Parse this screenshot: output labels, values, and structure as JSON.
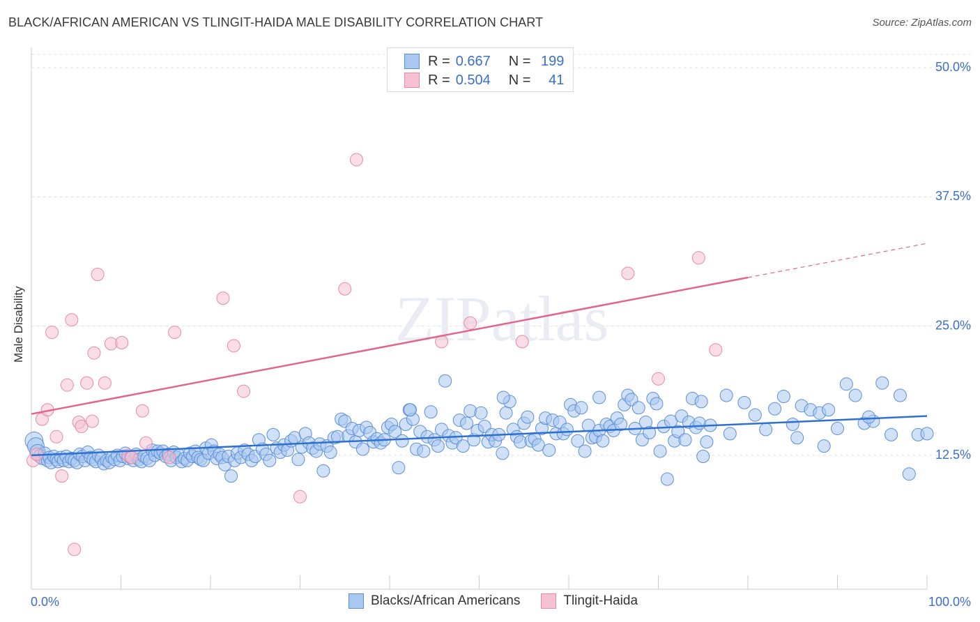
{
  "header": {
    "title": "BLACK/AFRICAN AMERICAN VS TLINGIT-HAIDA MALE DISABILITY CORRELATION CHART",
    "source": "Source: ZipAtlas.com"
  },
  "legend_top": {
    "row1": {
      "r_label": "R =",
      "r_value": "0.667",
      "n_label": "N =",
      "n_value": "199"
    },
    "row2": {
      "r_label": "R =",
      "r_value": "0.504",
      "n_label": "N =",
      "n_value": "41"
    }
  },
  "legend_bottom": {
    "blue": "Blacks/African Americans",
    "pink": "Tlingit-Haida"
  },
  "colors": {
    "blue_fill": "#a9c8f0",
    "blue_stroke": "#5b8fd6",
    "blue_line": "#2f6fd0",
    "pink_fill": "#f6c1d2",
    "pink_stroke": "#e58aa8",
    "pink_line": "#e0668f",
    "tick_text": "#3a6fc9"
  },
  "watermark": "ZIPatlas",
  "chart_data": {
    "type": "scatter",
    "title": "BLACK/AFRICAN AMERICAN VS TLINGIT-HAIDA MALE DISABILITY CORRELATION CHART",
    "xlabel": "",
    "ylabel": "Male Disability",
    "xlim": [
      0,
      100
    ],
    "ylim": [
      0,
      52
    ],
    "x_tick_labels": [
      "0.0%",
      "100.0%"
    ],
    "y_ticks": [
      12.5,
      25.0,
      37.5,
      50.0
    ],
    "y_tick_labels": [
      "12.5%",
      "25.0%",
      "37.5%",
      "50.0%"
    ],
    "grid": true,
    "series": [
      {
        "name": "Blacks/African Americans",
        "r": 0.667,
        "n": 199,
        "trend": {
          "x": [
            0,
            100
          ],
          "y": [
            12.5,
            16.3
          ],
          "dashed_from": null
        },
        "points": [
          [
            0.3,
            13.9
          ],
          [
            0.5,
            13.4
          ],
          [
            0.7,
            12.8
          ],
          [
            1.0,
            12.4
          ],
          [
            1.2,
            12.2
          ],
          [
            1.5,
            12.7
          ],
          [
            1.8,
            12.0
          ],
          [
            2.0,
            12.3
          ],
          [
            2.2,
            11.8
          ],
          [
            2.5,
            12.4
          ],
          [
            2.8,
            12.1
          ],
          [
            3.0,
            11.9
          ],
          [
            3.3,
            12.3
          ],
          [
            3.6,
            12.0
          ],
          [
            3.9,
            12.4
          ],
          [
            4.2,
            11.9
          ],
          [
            4.5,
            12.2
          ],
          [
            4.8,
            12.0
          ],
          [
            5.1,
            11.8
          ],
          [
            5.4,
            12.6
          ],
          [
            5.7,
            12.4
          ],
          [
            6.0,
            12.0
          ],
          [
            6.3,
            12.8
          ],
          [
            6.6,
            12.3
          ],
          [
            6.9,
            12.1
          ],
          [
            7.2,
            11.9
          ],
          [
            7.5,
            12.5
          ],
          [
            7.8,
            12.2
          ],
          [
            8.1,
            11.7
          ],
          [
            8.4,
            12.0
          ],
          [
            8.7,
            11.8
          ],
          [
            9.0,
            12.3
          ],
          [
            9.3,
            12.1
          ],
          [
            9.6,
            12.5
          ],
          [
            9.9,
            12.0
          ],
          [
            10.2,
            12.4
          ],
          [
            10.5,
            12.7
          ],
          [
            10.8,
            12.2
          ],
          [
            11.1,
            12.3
          ],
          [
            11.4,
            12.0
          ],
          [
            11.7,
            12.6
          ],
          [
            12.0,
            12.1
          ],
          [
            12.3,
            11.9
          ],
          [
            12.6,
            12.4
          ],
          [
            12.9,
            12.2
          ],
          [
            13.2,
            12.0
          ],
          [
            13.5,
            13.0
          ],
          [
            13.8,
            12.5
          ],
          [
            14.1,
            12.9
          ],
          [
            14.4,
            12.7
          ],
          [
            14.7,
            12.9
          ],
          [
            15.0,
            12.4
          ],
          [
            15.3,
            12.6
          ],
          [
            15.6,
            12.0
          ],
          [
            15.9,
            12.8
          ],
          [
            16.2,
            12.3
          ],
          [
            16.5,
            12.5
          ],
          [
            16.8,
            11.9
          ],
          [
            17.1,
            12.2
          ],
          [
            17.4,
            12.0
          ],
          [
            17.7,
            12.7
          ],
          [
            18.0,
            12.4
          ],
          [
            18.3,
            12.9
          ],
          [
            18.6,
            12.3
          ],
          [
            18.9,
            12.1
          ],
          [
            19.2,
            12.0
          ],
          [
            19.5,
            13.2
          ],
          [
            19.8,
            12.7
          ],
          [
            20.1,
            13.5
          ],
          [
            20.4,
            12.9
          ],
          [
            20.7,
            12.2
          ],
          [
            21.0,
            12.6
          ],
          [
            21.3,
            12.3
          ],
          [
            21.6,
            11.6
          ],
          [
            22.0,
            12.4
          ],
          [
            22.3,
            10.5
          ],
          [
            22.7,
            12.0
          ],
          [
            23.0,
            12.7
          ],
          [
            23.4,
            12.3
          ],
          [
            23.8,
            13.0
          ],
          [
            24.2,
            12.6
          ],
          [
            24.6,
            12.0
          ],
          [
            25.0,
            12.4
          ],
          [
            25.4,
            14.0
          ],
          [
            25.8,
            13.1
          ],
          [
            26.2,
            12.6
          ],
          [
            26.6,
            12.0
          ],
          [
            27.0,
            14.5
          ],
          [
            27.4,
            13.2
          ],
          [
            27.8,
            12.8
          ],
          [
            28.2,
            13.5
          ],
          [
            28.6,
            13.0
          ],
          [
            29.0,
            13.9
          ],
          [
            29.4,
            14.2
          ],
          [
            29.8,
            12.1
          ],
          [
            30.2,
            13.3
          ],
          [
            30.6,
            14.6
          ],
          [
            31.0,
            13.7
          ],
          [
            31.4,
            13.2
          ],
          [
            31.8,
            12.9
          ],
          [
            32.2,
            13.6
          ],
          [
            32.6,
            11.0
          ],
          [
            33.0,
            13.4
          ],
          [
            33.4,
            12.8
          ],
          [
            33.8,
            14.2
          ],
          [
            34.2,
            14.3
          ],
          [
            34.6,
            16.0
          ],
          [
            35.0,
            15.8
          ],
          [
            35.4,
            14.4
          ],
          [
            35.8,
            15.1
          ],
          [
            36.2,
            13.8
          ],
          [
            36.6,
            14.9
          ],
          [
            37.0,
            13.1
          ],
          [
            37.4,
            15.2
          ],
          [
            37.8,
            14.7
          ],
          [
            38.2,
            13.8
          ],
          [
            38.6,
            14.1
          ],
          [
            39.0,
            13.7
          ],
          [
            39.4,
            14.0
          ],
          [
            39.8,
            15.2
          ],
          [
            40.2,
            15.5
          ],
          [
            40.6,
            14.8
          ],
          [
            41.0,
            11.3
          ],
          [
            41.4,
            13.9
          ],
          [
            41.8,
            15.5
          ],
          [
            42.2,
            16.9
          ],
          [
            42.6,
            16.0
          ],
          [
            43.0,
            13.1
          ],
          [
            43.4,
            14.8
          ],
          [
            43.8,
            12.9
          ],
          [
            44.2,
            14.3
          ],
          [
            44.6,
            16.7
          ],
          [
            45.0,
            14.0
          ],
          [
            45.4,
            13.4
          ],
          [
            45.8,
            15.0
          ],
          [
            46.2,
            19.7
          ],
          [
            46.6,
            14.4
          ],
          [
            47.0,
            13.7
          ],
          [
            47.4,
            14.2
          ],
          [
            47.8,
            15.9
          ],
          [
            48.2,
            13.4
          ],
          [
            48.6,
            15.6
          ],
          [
            49.0,
            16.8
          ],
          [
            49.4,
            14.0
          ],
          [
            49.8,
            14.9
          ],
          [
            50.2,
            16.6
          ],
          [
            50.6,
            15.3
          ],
          [
            51.0,
            13.8
          ],
          [
            51.4,
            14.5
          ],
          [
            51.8,
            13.9
          ],
          [
            52.2,
            14.5
          ],
          [
            52.6,
            12.7
          ],
          [
            53.0,
            16.6
          ],
          [
            53.4,
            17.7
          ],
          [
            53.8,
            15.0
          ],
          [
            54.2,
            14.3
          ],
          [
            54.6,
            13.8
          ],
          [
            55.0,
            15.6
          ],
          [
            55.4,
            16.2
          ],
          [
            55.8,
            13.9
          ],
          [
            56.2,
            14.1
          ],
          [
            56.6,
            13.5
          ],
          [
            57.0,
            15.1
          ],
          [
            57.4,
            16.1
          ],
          [
            57.8,
            13.0
          ],
          [
            58.2,
            15.9
          ],
          [
            58.6,
            14.6
          ],
          [
            59.0,
            15.7
          ],
          [
            59.4,
            14.6
          ],
          [
            59.8,
            15.0
          ],
          [
            60.2,
            17.4
          ],
          [
            60.6,
            16.8
          ],
          [
            61.0,
            13.9
          ],
          [
            61.4,
            17.1
          ],
          [
            61.8,
            12.9
          ],
          [
            62.2,
            15.4
          ],
          [
            62.6,
            14.2
          ],
          [
            63.0,
            14.3
          ],
          [
            63.4,
            14.9
          ],
          [
            63.8,
            13.9
          ],
          [
            64.2,
            15.5
          ],
          [
            64.6,
            15.3
          ],
          [
            65.0,
            14.9
          ],
          [
            65.4,
            16.1
          ],
          [
            65.8,
            15.5
          ],
          [
            66.2,
            17.4
          ],
          [
            66.6,
            18.3
          ],
          [
            67.0,
            17.9
          ],
          [
            67.4,
            15.1
          ],
          [
            67.8,
            17.1
          ],
          [
            68.2,
            14.0
          ],
          [
            68.6,
            15.7
          ],
          [
            69.0,
            14.7
          ],
          [
            69.4,
            18.0
          ],
          [
            69.8,
            17.5
          ],
          [
            70.2,
            12.9
          ],
          [
            70.6,
            15.3
          ],
          [
            71.0,
            10.2
          ],
          [
            71.4,
            15.8
          ],
          [
            71.8,
            13.9
          ],
          [
            72.2,
            14.8
          ],
          [
            72.6,
            16.3
          ],
          [
            73.0,
            14.0
          ],
          [
            73.4,
            15.7
          ],
          [
            73.8,
            18.0
          ],
          [
            74.2,
            15.2
          ],
          [
            74.6,
            15.6
          ],
          [
            75.0,
            12.4
          ],
          [
            75.4,
            13.8
          ],
          [
            75.8,
            15.4
          ]
        ],
        "highlight_points": [
          [
            42.3,
            16.9
          ],
          [
            52.7,
            18.1
          ],
          [
            63.4,
            18.1
          ],
          [
            74.8,
            17.7
          ],
          [
            77.6,
            18.3
          ],
          [
            78.0,
            14.6
          ],
          [
            79.6,
            17.6
          ],
          [
            80.8,
            16.4
          ],
          [
            82.0,
            15.0
          ],
          [
            83.0,
            17.0
          ],
          [
            84.0,
            18.2
          ],
          [
            85.0,
            15.5
          ],
          [
            86.0,
            17.3
          ],
          [
            87.0,
            16.9
          ],
          [
            88.0,
            16.6
          ],
          [
            89.0,
            16.9
          ],
          [
            90.0,
            15.1
          ],
          [
            91.0,
            19.4
          ],
          [
            92.0,
            18.3
          ],
          [
            93.0,
            15.6
          ],
          [
            94.0,
            15.8
          ],
          [
            95.0,
            19.5
          ],
          [
            96.0,
            14.5
          ],
          [
            97.0,
            18.3
          ],
          [
            98.0,
            10.7
          ],
          [
            99.0,
            14.5
          ],
          [
            100.0,
            14.6
          ],
          [
            88.5,
            13.4
          ],
          [
            85.5,
            14.2
          ],
          [
            93.5,
            16.2
          ]
        ]
      },
      {
        "name": "Tlingit-Haida",
        "r": 0.504,
        "n": 41,
        "trend": {
          "x": [
            0,
            100
          ],
          "y": [
            16.5,
            33.0
          ],
          "dashed_from": 80
        },
        "points": [
          [
            0.2,
            12.0
          ],
          [
            0.6,
            12.6
          ],
          [
            1.2,
            16.0
          ],
          [
            1.8,
            16.9
          ],
          [
            2.3,
            24.4
          ],
          [
            2.8,
            14.3
          ],
          [
            3.4,
            10.5
          ],
          [
            4.0,
            19.3
          ],
          [
            4.5,
            25.6
          ],
          [
            4.8,
            3.4
          ],
          [
            5.3,
            15.7
          ],
          [
            5.6,
            15.3
          ],
          [
            6.2,
            19.5
          ],
          [
            6.8,
            15.8
          ],
          [
            7.0,
            22.4
          ],
          [
            7.4,
            30.0
          ],
          [
            8.2,
            19.5
          ],
          [
            8.9,
            23.3
          ],
          [
            10.1,
            23.4
          ],
          [
            10.8,
            12.5
          ],
          [
            11.2,
            12.3
          ],
          [
            12.4,
            16.8
          ],
          [
            12.8,
            13.7
          ],
          [
            15.4,
            12.3
          ],
          [
            16.0,
            24.4
          ],
          [
            21.4,
            27.7
          ],
          [
            22.6,
            23.1
          ],
          [
            23.7,
            18.7
          ],
          [
            30.0,
            8.5
          ],
          [
            35.0,
            28.6
          ],
          [
            36.3,
            41.1
          ],
          [
            45.8,
            23.5
          ],
          [
            49.0,
            25.3
          ],
          [
            54.8,
            23.5
          ],
          [
            66.6,
            30.1
          ],
          [
            70.0,
            19.9
          ],
          [
            74.5,
            31.6
          ],
          [
            76.4,
            22.7
          ]
        ]
      }
    ]
  }
}
